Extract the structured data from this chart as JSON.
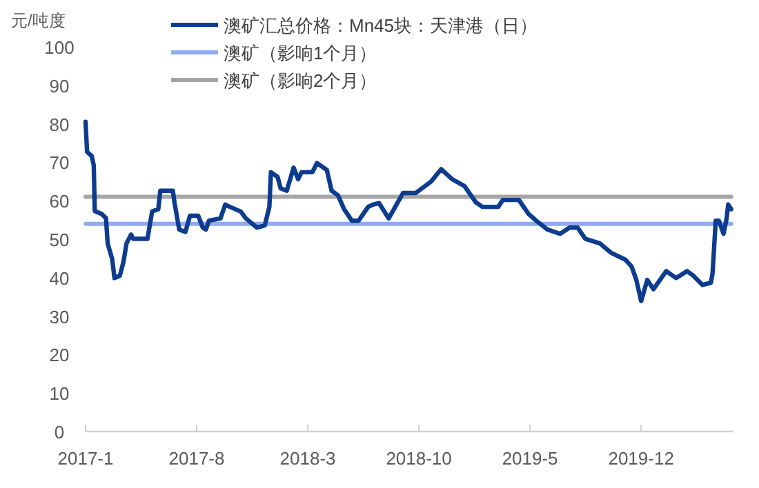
{
  "chart_data": {
    "type": "line",
    "ylabel": "元/吨度",
    "legend": "top",
    "xlim": [
      "2017-01-01",
      "2020-05-25"
    ],
    "xticks": [
      {
        "value": "2017-01",
        "label": "2017-1"
      },
      {
        "value": "2017-08",
        "label": "2017-8"
      },
      {
        "value": "2018-03",
        "label": "2018-3"
      },
      {
        "value": "2018-10",
        "label": "2018-10"
      },
      {
        "value": "2019-05",
        "label": "2019-5"
      },
      {
        "value": "2019-12",
        "label": "2019-12"
      }
    ],
    "ylim": [
      0,
      100
    ],
    "yticks": [
      0,
      10,
      20,
      30,
      40,
      50,
      60,
      70,
      80,
      90,
      100
    ],
    "series": [
      {
        "name": "澳矿汇总价格：Mn45块：天津港（日）",
        "color": "#0d3c8f",
        "x": [
          "2017-01-01",
          "2017-01-04",
          "2017-01-13",
          "2017-01-17",
          "2017-01-19",
          "2017-02-01",
          "2017-02-09",
          "2017-02-12",
          "2017-02-20",
          "2017-02-24",
          "2017-03-06",
          "2017-03-13",
          "2017-03-19",
          "2017-03-28",
          "2017-04-01",
          "2017-04-28",
          "2017-05-01",
          "2017-05-07",
          "2017-05-19",
          "2017-05-23",
          "2017-06-16",
          "2017-06-19",
          "2017-06-28",
          "2017-07-10",
          "2017-07-19",
          "2017-08-04",
          "2017-08-13",
          "2017-08-19",
          "2017-08-25",
          "2017-09-16",
          "2017-09-25",
          "2017-10-04",
          "2017-10-25",
          "2017-11-04",
          "2017-11-25",
          "2017-12-10",
          "2017-12-19",
          "2017-12-22",
          "2018-01-04",
          "2018-01-10",
          "2018-01-22",
          "2018-02-04",
          "2018-02-12",
          "2018-02-18",
          "2018-03-10",
          "2018-03-19",
          "2018-04-07",
          "2018-04-16",
          "2018-04-28",
          "2018-05-10",
          "2018-05-25",
          "2018-06-07",
          "2018-06-25",
          "2018-07-04",
          "2018-07-16",
          "2018-08-04",
          "2018-09-01",
          "2018-09-25",
          "2018-10-25",
          "2018-11-13",
          "2018-12-04",
          "2018-12-28",
          "2019-01-19",
          "2019-02-01",
          "2019-03-01",
          "2019-03-10",
          "2019-04-10",
          "2019-04-28",
          "2019-05-13",
          "2019-06-04",
          "2019-06-28",
          "2019-07-16",
          "2019-08-01",
          "2019-08-16",
          "2019-09-13",
          "2019-10-04",
          "2019-11-01",
          "2019-11-13",
          "2019-11-22",
          "2019-12-01",
          "2019-12-13",
          "2019-12-25",
          "2020-01-19",
          "2020-02-07",
          "2020-02-27",
          "2020-03-10",
          "2020-03-28",
          "2020-04-13",
          "2020-04-16",
          "2020-04-22",
          "2020-04-28",
          "2020-05-07",
          "2020-05-13",
          "2020-05-16",
          "2020-05-22"
        ],
        "values": [
          80.5,
          72.7,
          71.6,
          69.2,
          57.3,
          56.6,
          55.5,
          48.9,
          44.8,
          39.9,
          40.5,
          44.1,
          48.9,
          51.2,
          50.1,
          50.1,
          52.5,
          57.2,
          57.8,
          62.6,
          62.6,
          59.6,
          52.5,
          51.9,
          56.1,
          56.1,
          53,
          52.5,
          54.8,
          55.4,
          59,
          58.4,
          57.2,
          55.4,
          53,
          53.6,
          58.4,
          67.4,
          66.2,
          63.2,
          62.6,
          68.6,
          65.6,
          67.4,
          67.4,
          69.8,
          68,
          62.6,
          61.4,
          57.8,
          54.8,
          54.8,
          58.4,
          59,
          59.4,
          55.4,
          62,
          62,
          65,
          68.2,
          65.6,
          63.8,
          59.6,
          58.4,
          58.4,
          60.2,
          60.2,
          56.6,
          54.8,
          52.5,
          51.4,
          53,
          53,
          50.1,
          48.9,
          46.5,
          44.7,
          42.9,
          39.4,
          33.9,
          39.4,
          37,
          41.7,
          39.9,
          41.7,
          40.5,
          38.1,
          38.7,
          41.1,
          54.8,
          54.8,
          51.4,
          55.4,
          59,
          57.8
        ]
      },
      {
        "name": "澳矿（影响1个月）",
        "color": "#8faaee",
        "x": [
          "2017-01-01",
          "2020-05-22"
        ],
        "values": [
          54,
          54
        ]
      },
      {
        "name": "澳矿（影响2个月）",
        "color": "#a6a6a6",
        "x": [
          "2017-01-01",
          "2020-05-22"
        ],
        "values": [
          61,
          61
        ]
      }
    ]
  }
}
